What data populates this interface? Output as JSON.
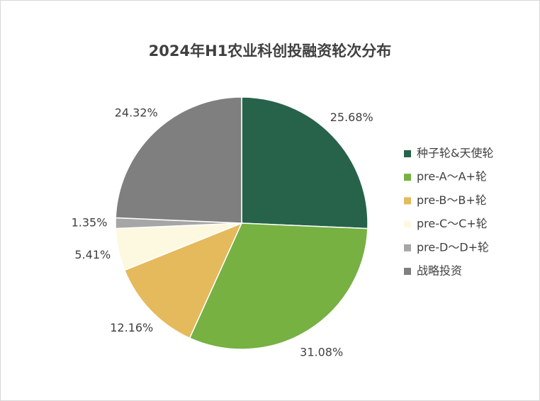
{
  "chart_data": {
    "type": "pie",
    "title": "2024年H1农业科创投融资轮次分布",
    "categories": [
      "种子轮&天使轮",
      "pre-A～A+轮",
      "pre-B～B+轮",
      "pre-C～C+轮",
      "pre-D～D+轮",
      "战略投资"
    ],
    "values": [
      25.68,
      31.08,
      12.16,
      5.41,
      1.35,
      24.32
    ],
    "value_labels": [
      "25.68%",
      "31.08%",
      "12.16%",
      "5.41%",
      "1.35%",
      "24.32%"
    ],
    "colors": [
      "#27634a",
      "#76b142",
      "#e5ba5c",
      "#fdf9e1",
      "#a6a6a6",
      "#7f7f7f"
    ],
    "legend": "right"
  }
}
